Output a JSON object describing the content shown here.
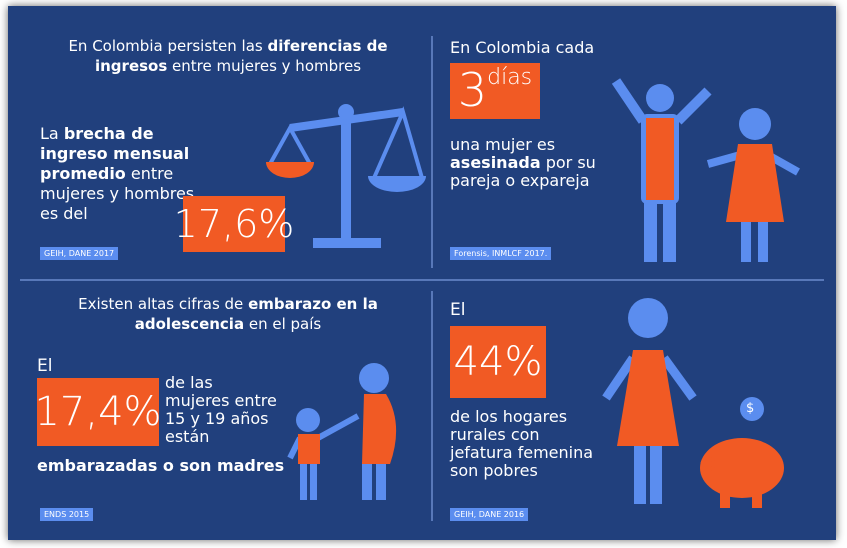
{
  "panels": [
    {
      "heading": [
        "En Colombia persisten las ",
        "diferencias de ingresos",
        " entre mujeres y hombres"
      ],
      "body": [
        "La ",
        "brecha de ingreso mensual promedio",
        " entre mujeres y hombres es del"
      ],
      "figure": "17,6%",
      "source": "GEIH, DANE 2017"
    },
    {
      "heading": "En Colombia cada",
      "figure": "3",
      "figure_unit": "días",
      "body": [
        "una mujer es ",
        "asesinada",
        " por su pareja o expareja"
      ],
      "source": "Forensis, INMLCF 2017."
    },
    {
      "heading": [
        "Existen altas cifras de ",
        "embarazo en la adolescencia",
        " en el país"
      ],
      "lead": "El",
      "figure": "17,4%",
      "body": "de las mujeres entre 15 y 19 años están",
      "emphasis": "embarazadas o son madres",
      "source": "ENDS 2015"
    },
    {
      "lead": "El",
      "figure": "44%",
      "body": "de los hogares rurales con jefatura femenina son pobres",
      "coin": "$",
      "source": "GEIH, DANE 2016"
    }
  ]
}
